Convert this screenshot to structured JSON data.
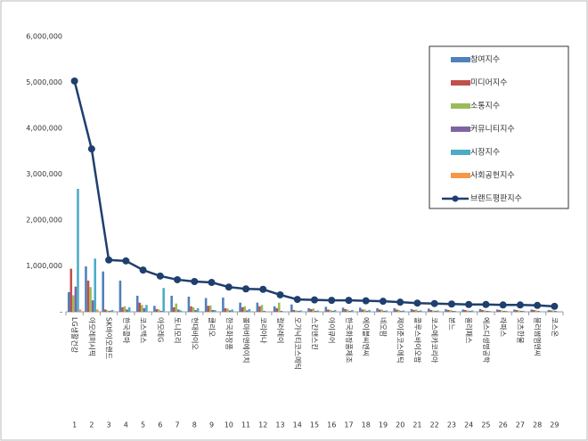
{
  "chart_data": {
    "type": "bar-line",
    "categories": [
      "LG생활건강",
      "아모레퍼시픽",
      "SK바이오랜드",
      "한국콜마",
      "코스맥스",
      "아모레G",
      "토니모리",
      "현대바이오",
      "클리오",
      "한국화장품",
      "콜마비앤에이치",
      "코리아나",
      "컬러레이",
      "오가닉티코스메틱",
      "스킨앤스킨",
      "아이큐어",
      "한국화장품제조",
      "에이블씨엔씨",
      "네오팜",
      "제이준코스메틱",
      "콜루스바이오팜",
      "코스메카코리아",
      "본느",
      "올리패스",
      "에스디생명공학",
      "라파스",
      "잇츠한불",
      "블러썸엠앤씨",
      "코스온"
    ],
    "category_numbers": [
      1,
      2,
      3,
      4,
      5,
      6,
      7,
      8,
      9,
      10,
      11,
      12,
      13,
      14,
      15,
      16,
      17,
      18,
      19,
      20,
      21,
      22,
      23,
      24,
      25,
      26,
      27,
      28,
      29
    ],
    "ylim": [
      0,
      6000000
    ],
    "yticks": [
      {
        "value": 0,
        "label": "-"
      },
      {
        "value": 1000000,
        "label": "1,000,000"
      },
      {
        "value": 2000000,
        "label": "2,000,000"
      },
      {
        "value": 3000000,
        "label": "3,000,000"
      },
      {
        "value": 4000000,
        "label": "4,000,000"
      },
      {
        "value": 5000000,
        "label": "5,000,000"
      },
      {
        "value": 6000000,
        "label": "6,000,000"
      }
    ],
    "series": [
      {
        "name": "참여지수",
        "color": "#4f81bd",
        "values": [
          430000,
          990000,
          880000,
          680000,
          350000,
          130000,
          350000,
          330000,
          300000,
          310000,
          200000,
          200000,
          120000,
          160000,
          80000,
          110000,
          90000,
          90000,
          80000,
          80000,
          60000,
          70000,
          60000,
          50000,
          60000,
          50000,
          50000,
          50000,
          40000
        ]
      },
      {
        "name": "미디어지수",
        "color": "#c0504d",
        "values": [
          940000,
          680000,
          50000,
          100000,
          200000,
          60000,
          100000,
          120000,
          130000,
          80000,
          100000,
          120000,
          80000,
          40000,
          60000,
          50000,
          60000,
          50000,
          50000,
          50000,
          40000,
          40000,
          40000,
          40000,
          40000,
          40000,
          40000,
          40000,
          30000
        ]
      },
      {
        "name": "소통지수",
        "color": "#9bbb59",
        "values": [
          360000,
          540000,
          30000,
          120000,
          150000,
          50000,
          180000,
          100000,
          140000,
          70000,
          120000,
          150000,
          200000,
          30000,
          70000,
          40000,
          50000,
          50000,
          50000,
          40000,
          50000,
          30000,
          40000,
          30000,
          30000,
          30000,
          30000,
          30000,
          30000
        ]
      },
      {
        "name": "커뮤니티지수",
        "color": "#8064a2",
        "values": [
          550000,
          250000,
          20000,
          50000,
          80000,
          20000,
          50000,
          40000,
          40000,
          30000,
          30000,
          20000,
          20000,
          20000,
          20000,
          20000,
          20000,
          20000,
          20000,
          20000,
          20000,
          20000,
          20000,
          20000,
          20000,
          20000,
          20000,
          20000,
          20000
        ]
      },
      {
        "name": "시장지수",
        "color": "#4bacc6",
        "values": [
          2680000,
          1160000,
          40000,
          100000,
          150000,
          520000,
          30000,
          80000,
          40000,
          50000,
          60000,
          10000,
          10000,
          30000,
          30000,
          40000,
          40000,
          40000,
          30000,
          30000,
          30000,
          30000,
          20000,
          30000,
          20000,
          20000,
          20000,
          10000,
          10000
        ]
      },
      {
        "name": "사회공헌지수",
        "color": "#f79646",
        "values": [
          50000,
          50000,
          0,
          0,
          0,
          0,
          0,
          0,
          0,
          0,
          0,
          0,
          0,
          0,
          0,
          0,
          0,
          0,
          0,
          0,
          0,
          0,
          0,
          0,
          0,
          0,
          0,
          0,
          0
        ]
      },
      {
        "name": "브랜드평판지수",
        "color": "#1f3f6e",
        "type": "line",
        "values": [
          5030000,
          3550000,
          1130000,
          1110000,
          910000,
          780000,
          700000,
          660000,
          640000,
          540000,
          500000,
          490000,
          370000,
          270000,
          260000,
          250000,
          250000,
          240000,
          230000,
          210000,
          190000,
          180000,
          170000,
          160000,
          160000,
          150000,
          150000,
          140000,
          120000
        ]
      }
    ]
  }
}
